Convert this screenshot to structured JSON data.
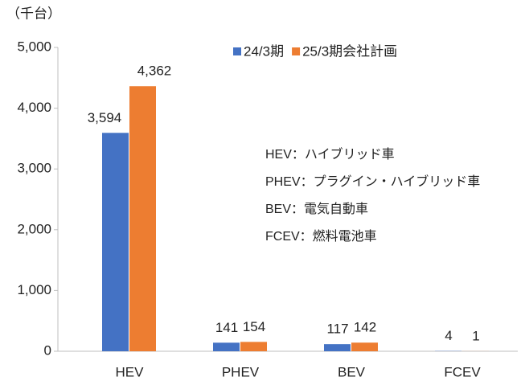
{
  "chart_data": {
    "type": "bar",
    "y_label": "（千台）",
    "categories": [
      "HEV",
      "PHEV",
      "BEV",
      "FCEV"
    ],
    "series": [
      {
        "name": "24/3期",
        "color": "#4472c4",
        "values": [
          3594,
          141,
          117,
          4
        ],
        "value_labels": [
          "3,594",
          "141",
          "117",
          "4"
        ]
      },
      {
        "name": "25/3期会社計画",
        "color": "#ed7d31",
        "values": [
          4362,
          154,
          142,
          1
        ],
        "value_labels": [
          "4,362",
          "154",
          "142",
          "1"
        ]
      }
    ],
    "ylim": [
      0,
      5000
    ],
    "yticks": [
      0,
      {
        "value": 1000,
        "label": "1,000"
      },
      {
        "value": 2000,
        "label": "2,000"
      },
      {
        "value": 3000,
        "label": "3,000"
      },
      {
        "value": 4000,
        "label": "4,000"
      },
      {
        "value": 5000,
        "label": "5,000"
      }
    ],
    "annotations": [
      "HEV：ハイブリッド車",
      "PHEV：プラグイン・ハイブリッド車",
      "BEV：電気自動車",
      "FCEV：燃料電池車"
    ],
    "legend": "top",
    "grid": false
  }
}
